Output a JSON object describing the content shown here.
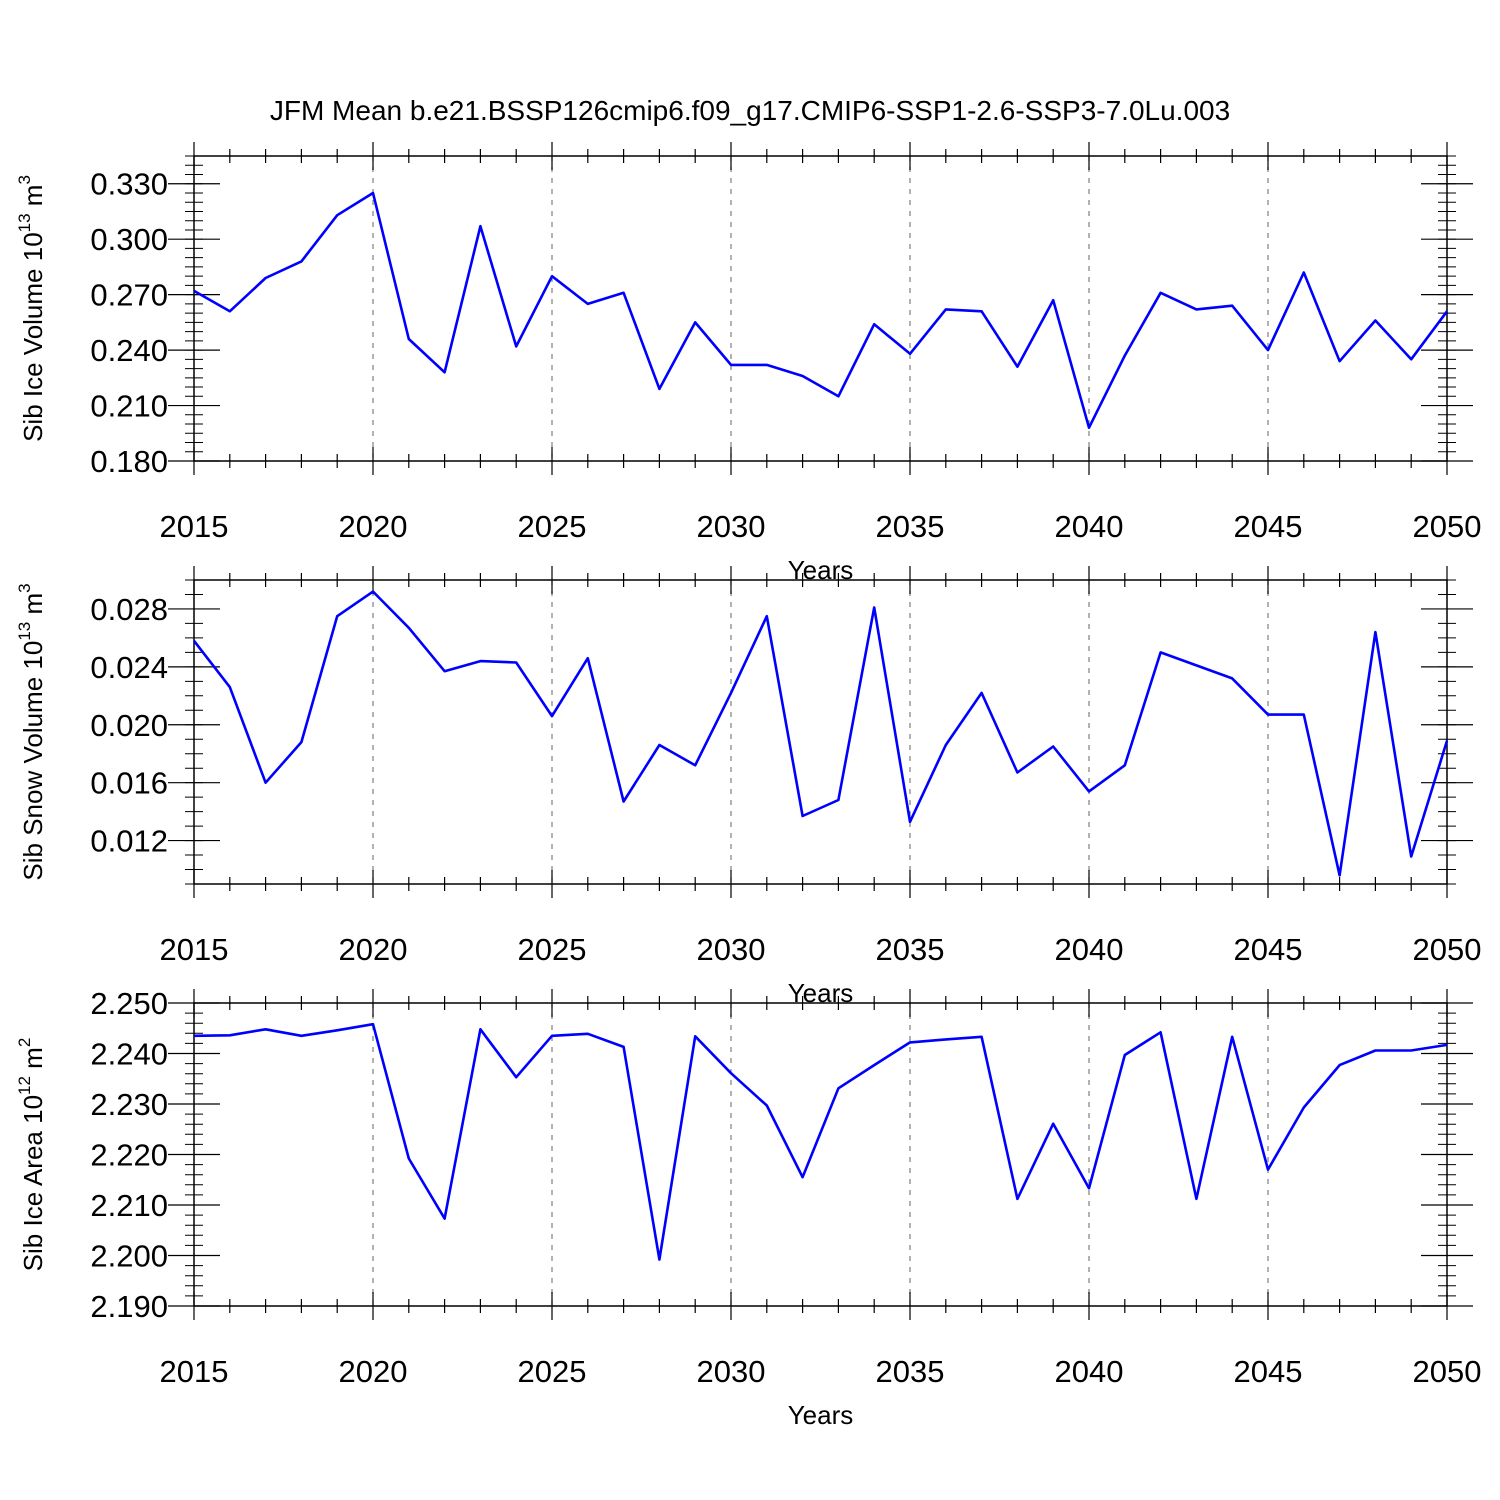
{
  "title": "JFM Mean b.e21.BSSP126cmip6.f09_g17.CMIP6-SSP1-2.6-SSP3-7.0Lu.003",
  "line_color": "#0000ff",
  "chart_data": [
    {
      "type": "line",
      "ylabel_main": "Sib Ice Volume 10",
      "ylabel_exp": "13",
      "ylabel_unit": " m",
      "ylabel_unit_exp": "3",
      "xlabel": "Years",
      "xlim": [
        2015,
        2050
      ],
      "ylim": [
        0.18,
        0.345
      ],
      "ytick_values": [
        0.18,
        0.21,
        0.24,
        0.27,
        0.3,
        0.33
      ],
      "ytick_labels": [
        "0.180",
        "0.210",
        "0.240",
        "0.270",
        "0.300",
        "0.330"
      ],
      "xtick_labels": [
        "2015",
        "2020",
        "2025",
        "2030",
        "2035",
        "2040",
        "2045",
        "2050"
      ],
      "x": [
        2015,
        2016,
        2017,
        2018,
        2019,
        2020,
        2021,
        2022,
        2023,
        2024,
        2025,
        2026,
        2027,
        2028,
        2029,
        2030,
        2031,
        2032,
        2033,
        2034,
        2035,
        2036,
        2037,
        2038,
        2039,
        2040,
        2041,
        2042,
        2043,
        2044,
        2045,
        2046,
        2047,
        2048,
        2049,
        2050
      ],
      "y": [
        0.272,
        0.261,
        0.279,
        0.288,
        0.313,
        0.325,
        0.246,
        0.228,
        0.307,
        0.242,
        0.28,
        0.265,
        0.271,
        0.219,
        0.255,
        0.232,
        0.232,
        0.226,
        0.215,
        0.254,
        0.238,
        0.262,
        0.261,
        0.231,
        0.267,
        0.198,
        0.237,
        0.271,
        0.262,
        0.264,
        0.24,
        0.282,
        0.234,
        0.256,
        0.235,
        0.261
      ]
    },
    {
      "type": "line",
      "ylabel_main": "Sib Snow Volume 10",
      "ylabel_exp": "13",
      "ylabel_unit": " m",
      "ylabel_unit_exp": "3",
      "xlabel": "Years",
      "xlim": [
        2015,
        2050
      ],
      "ylim": [
        0.009,
        0.03
      ],
      "ytick_values": [
        0.012,
        0.016,
        0.02,
        0.024,
        0.028
      ],
      "ytick_labels": [
        "0.012",
        "0.016",
        "0.020",
        "0.024",
        "0.028"
      ],
      "xtick_labels": [
        "2015",
        "2020",
        "2025",
        "2030",
        "2035",
        "2040",
        "2045",
        "2050"
      ],
      "x": [
        2015,
        2016,
        2017,
        2018,
        2019,
        2020,
        2021,
        2022,
        2023,
        2024,
        2025,
        2026,
        2027,
        2028,
        2029,
        2030,
        2031,
        2032,
        2033,
        2034,
        2035,
        2036,
        2037,
        2038,
        2039,
        2040,
        2041,
        2042,
        2043,
        2044,
        2045,
        2046,
        2047,
        2048,
        2049,
        2050
      ],
      "y": [
        0.0258,
        0.0226,
        0.016,
        0.0188,
        0.0275,
        0.0292,
        0.0267,
        0.0237,
        0.0244,
        0.0243,
        0.0206,
        0.0246,
        0.0147,
        0.0186,
        0.0172,
        0.0222,
        0.0275,
        0.0137,
        0.0148,
        0.0281,
        0.0133,
        0.0186,
        0.0222,
        0.0167,
        0.0185,
        0.0154,
        0.0172,
        0.025,
        0.0241,
        0.0232,
        0.0207,
        0.0207,
        0.0096,
        0.0264,
        0.0109,
        0.0189
      ]
    },
    {
      "type": "line",
      "ylabel_main": "Sib Ice Area 10",
      "ylabel_exp": "12",
      "ylabel_unit": " m",
      "ylabel_unit_exp": "2",
      "xlabel": "Years",
      "xlim": [
        2015,
        2050
      ],
      "ylim": [
        2.19,
        2.25
      ],
      "ytick_values": [
        2.19,
        2.2,
        2.21,
        2.22,
        2.23,
        2.24,
        2.25
      ],
      "ytick_labels": [
        "2.190",
        "2.200",
        "2.210",
        "2.220",
        "2.230",
        "2.240",
        "2.250"
      ],
      "xtick_labels": [
        "2015",
        "2020",
        "2025",
        "2030",
        "2035",
        "2040",
        "2045",
        "2050"
      ],
      "x": [
        2015,
        2016,
        2017,
        2018,
        2019,
        2020,
        2021,
        2022,
        2023,
        2024,
        2025,
        2026,
        2027,
        2028,
        2029,
        2030,
        2031,
        2032,
        2033,
        2034,
        2035,
        2036,
        2037,
        2038,
        2039,
        2040,
        2041,
        2042,
        2043,
        2044,
        2045,
        2046,
        2047,
        2048,
        2049,
        2050
      ],
      "y": [
        2.2435,
        2.2436,
        2.2448,
        2.2435,
        2.2446,
        2.2458,
        2.2192,
        2.2073,
        2.2448,
        2.2353,
        2.2435,
        2.2439,
        2.2413,
        2.1992,
        2.2434,
        2.2361,
        2.2297,
        2.2155,
        2.2331,
        2.2377,
        2.2422,
        2.2428,
        2.2433,
        2.2112,
        2.2261,
        2.2133,
        2.2397,
        2.2442,
        2.2112,
        2.2433,
        2.217,
        2.2293,
        2.2377,
        2.2406,
        2.2406,
        2.2417
      ]
    }
  ]
}
